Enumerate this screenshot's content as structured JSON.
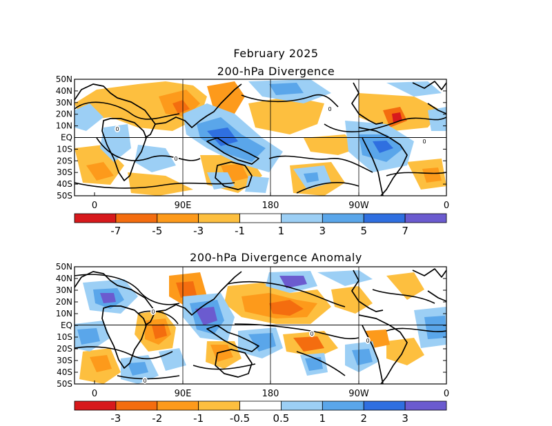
{
  "header": {
    "title": "February 2025"
  },
  "panels": [
    {
      "title": "200-hPa Divergence",
      "y_ticks": [
        "50N",
        "40N",
        "30N",
        "20N",
        "10N",
        "EQ",
        "10S",
        "20S",
        "30S",
        "40S",
        "50S"
      ],
      "x_ticks": [
        "0",
        "90E",
        "180",
        "90W",
        "0"
      ],
      "colorbar": {
        "colors": [
          "#d7191c",
          "#f46d0f",
          "#fd9a1b",
          "#fdbf3f",
          "#ffffff",
          "#9ccff5",
          "#5aa6ea",
          "#2f6fe0",
          "#6b5bcf"
        ],
        "labels": [
          "-7",
          "-5",
          "-3",
          "-1",
          "1",
          "3",
          "5",
          "7"
        ]
      }
    },
    {
      "title": "200-hPa Divergence Anomaly",
      "y_ticks": [
        "50N",
        "40N",
        "30N",
        "20N",
        "10N",
        "EQ",
        "10S",
        "20S",
        "30S",
        "40S",
        "50S"
      ],
      "x_ticks": [
        "0",
        "90E",
        "180",
        "90W",
        "0"
      ],
      "colorbar": {
        "colors": [
          "#d7191c",
          "#f46d0f",
          "#fd9a1b",
          "#fdbf3f",
          "#ffffff",
          "#9ccff5",
          "#5aa6ea",
          "#2f6fe0",
          "#6b5bcf"
        ],
        "labels": [
          "-3",
          "-2",
          "-1",
          "-0.5",
          "0.5",
          "1",
          "2",
          "3"
        ]
      }
    }
  ],
  "colors": {
    "contour": "#000000",
    "frame": "#000000",
    "zero_label": "0"
  }
}
